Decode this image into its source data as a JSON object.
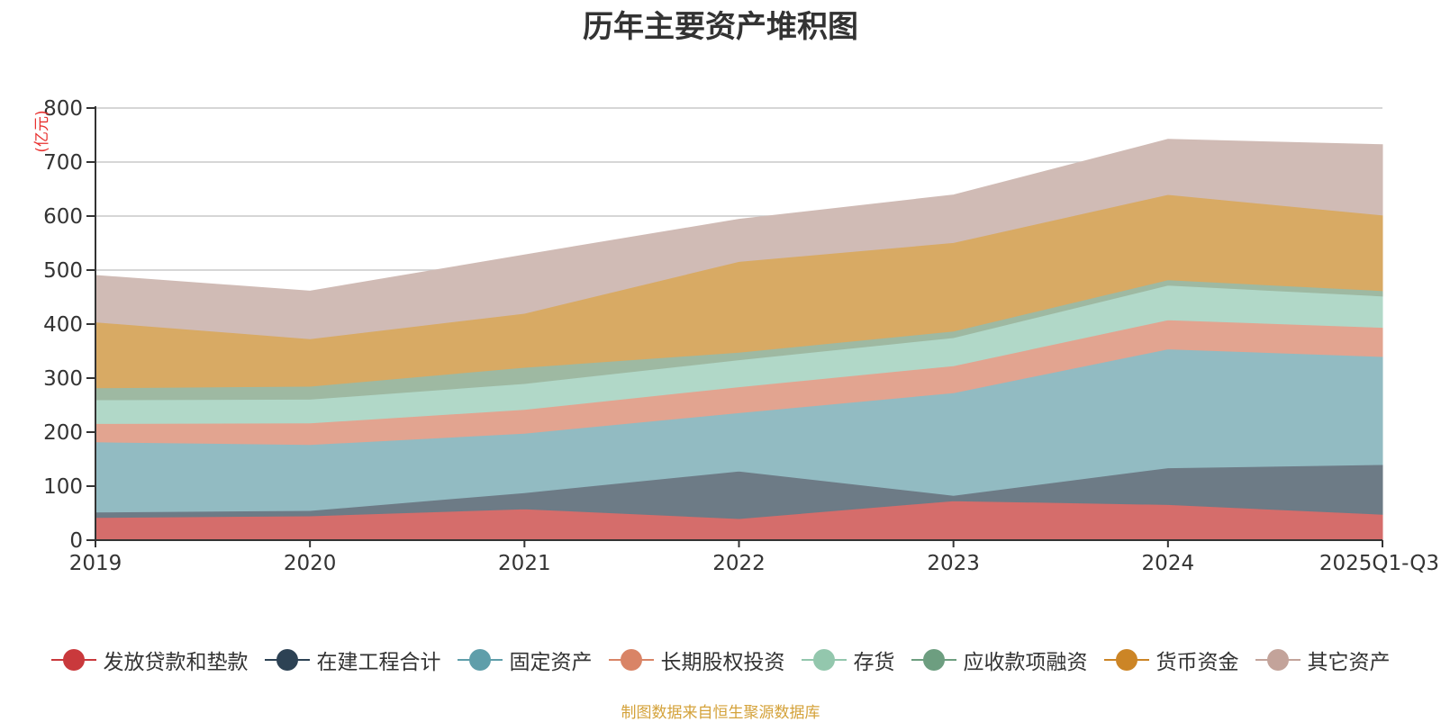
{
  "chart_data": {
    "type": "area",
    "stacked": true,
    "title": "历年主要资产堆积图",
    "ylabel": "(亿元)",
    "xlabel": "",
    "ylim": [
      0,
      800
    ],
    "yticks": [
      0,
      100,
      200,
      300,
      400,
      500,
      600,
      700,
      800
    ],
    "categories": [
      "2019",
      "2020",
      "2021",
      "2022",
      "2023",
      "2024",
      "2025Q1-Q3"
    ],
    "series": [
      {
        "name": "发放贷款和垫款",
        "color": "#d56d6b",
        "values": [
          42,
          45,
          58,
          40,
          73,
          66,
          48
        ]
      },
      {
        "name": "在建工程合计",
        "color": "#6d7b86",
        "values": [
          10,
          10,
          30,
          88,
          10,
          68,
          92
        ]
      },
      {
        "name": "固定资产",
        "color": "#92bbc2",
        "values": [
          130,
          122,
          110,
          108,
          190,
          220,
          200
        ]
      },
      {
        "name": "长期股权投资",
        "color": "#e2a490",
        "values": [
          34,
          40,
          44,
          48,
          50,
          54,
          54
        ]
      },
      {
        "name": "存货",
        "color": "#b1d8c8",
        "values": [
          44,
          44,
          48,
          50,
          52,
          64,
          58
        ]
      },
      {
        "name": "应收款项融资",
        "color": "#9eb9a2",
        "values": [
          22,
          24,
          30,
          14,
          12,
          10,
          10
        ]
      },
      {
        "name": "货币资金",
        "color": "#d8aa64",
        "values": [
          122,
          88,
          100,
          168,
          164,
          158,
          140
        ]
      },
      {
        "name": "其它资产",
        "color": "#d0bbb5",
        "values": [
          86,
          88,
          108,
          78,
          88,
          102,
          130
        ]
      }
    ],
    "legend": {
      "position": "bottom",
      "items": [
        {
          "name": "发放贷款和垫款",
          "color": "#c9393c"
        },
        {
          "name": "在建工程合计",
          "color": "#2d4254"
        },
        {
          "name": "固定资产",
          "color": "#5f9eaa"
        },
        {
          "name": "长期股权投资",
          "color": "#d98466"
        },
        {
          "name": "存货",
          "color": "#93c7ad"
        },
        {
          "name": "应收款项融资",
          "color": "#6d9e80"
        },
        {
          "name": "货币资金",
          "color": "#cc8526"
        },
        {
          "name": "其它资产",
          "color": "#c3a39a"
        }
      ]
    },
    "source": "制图数据来自恒生聚源数据库"
  }
}
